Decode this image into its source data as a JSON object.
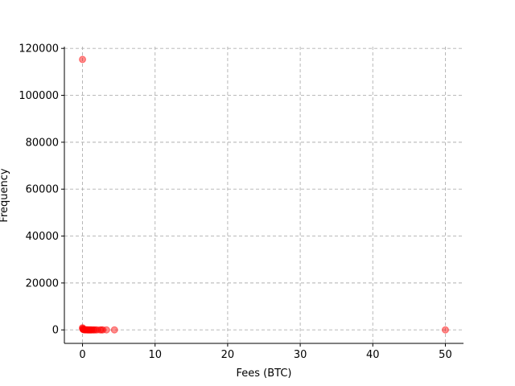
{
  "chart_data": {
    "type": "scatter",
    "title": "",
    "xlabel": "Fees (BTC)",
    "ylabel": "Frequency",
    "xlim": [
      -2.5,
      52.5
    ],
    "ylim": [
      -5750,
      120750
    ],
    "xticks": [
      0,
      10,
      20,
      30,
      40,
      50
    ],
    "yticks": [
      0,
      20000,
      40000,
      60000,
      80000,
      100000,
      120000
    ],
    "xtick_labels": [
      "0",
      "10",
      "20",
      "30",
      "40",
      "50"
    ],
    "ytick_labels": [
      "0",
      "20000",
      "40000",
      "60000",
      "80000",
      "100000",
      "120000"
    ],
    "grid": true,
    "marker_color": "#ff0000",
    "marker_alpha": 0.45,
    "points": [
      {
        "x": 0.0,
        "y": 115300
      },
      {
        "x": 0.0,
        "y": 900
      },
      {
        "x": 0.02,
        "y": 600
      },
      {
        "x": 0.05,
        "y": 350
      },
      {
        "x": 0.1,
        "y": 200
      },
      {
        "x": 0.15,
        "y": 120
      },
      {
        "x": 0.2,
        "y": 80
      },
      {
        "x": 0.3,
        "y": 50
      },
      {
        "x": 0.4,
        "y": 30
      },
      {
        "x": 0.5,
        "y": 20
      },
      {
        "x": 0.6,
        "y": 15
      },
      {
        "x": 0.7,
        "y": 10
      },
      {
        "x": 0.8,
        "y": 8
      },
      {
        "x": 0.9,
        "y": 6
      },
      {
        "x": 1.0,
        "y": 5
      },
      {
        "x": 1.1,
        "y": 4
      },
      {
        "x": 1.2,
        "y": 3
      },
      {
        "x": 1.3,
        "y": 3
      },
      {
        "x": 1.5,
        "y": 2
      },
      {
        "x": 1.6,
        "y": 2
      },
      {
        "x": 1.8,
        "y": 1
      },
      {
        "x": 2.0,
        "y": 1
      },
      {
        "x": 2.4,
        "y": 1
      },
      {
        "x": 2.6,
        "y": 1
      },
      {
        "x": 2.8,
        "y": 1
      },
      {
        "x": 3.3,
        "y": 1
      },
      {
        "x": 4.4,
        "y": 1
      },
      {
        "x": 50.0,
        "y": 1
      }
    ]
  }
}
